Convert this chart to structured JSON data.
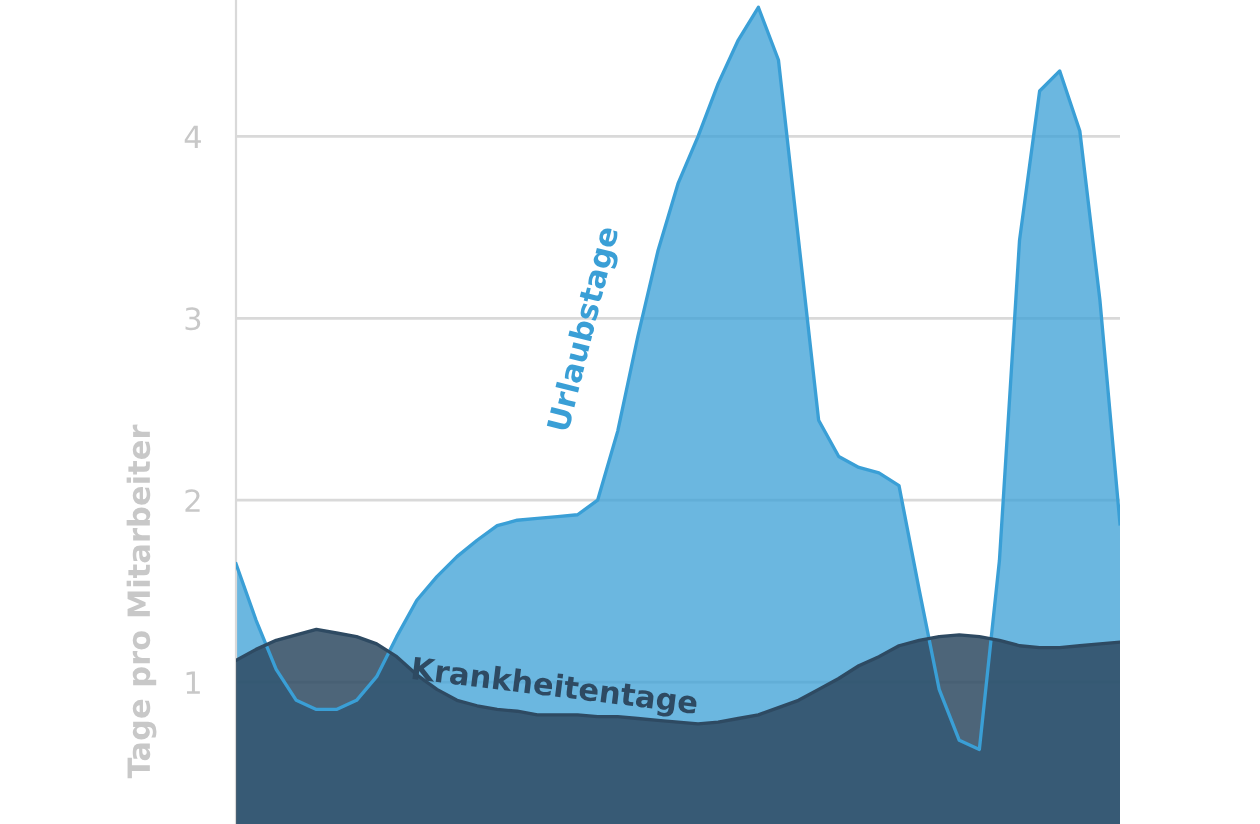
{
  "chart_data": {
    "type": "area",
    "ylabel": "Tage pro Mitarbeiter",
    "categories": [
      null,
      null,
      null,
      null,
      null,
      null,
      null,
      null,
      null,
      null,
      null,
      null,
      null,
      null,
      null,
      null,
      null,
      null,
      null,
      null,
      null,
      null,
      null,
      null,
      null,
      null,
      null,
      null,
      null,
      null,
      null,
      null,
      null,
      null,
      null,
      null,
      null,
      null,
      null,
      null,
      null,
      null,
      null,
      null,
      null
    ],
    "series": [
      {
        "name": "Urlaubstage",
        "color": "#3a9fd6",
        "values": [
          1.65,
          1.34,
          1.07,
          0.9,
          0.85,
          0.85,
          0.9,
          1.03,
          1.25,
          1.45,
          1.58,
          1.69,
          1.78,
          1.86,
          1.89,
          1.9,
          1.91,
          1.92,
          2.0,
          2.38,
          2.9,
          3.37,
          3.74,
          4.0,
          4.29,
          4.53,
          4.71,
          4.42,
          3.43,
          2.44,
          2.24,
          2.18,
          2.15,
          2.08,
          1.51,
          0.96,
          0.68,
          0.63,
          1.67,
          3.43,
          4.25,
          4.36,
          4.03,
          3.1,
          1.87
        ]
      },
      {
        "name": "Krankheitentage",
        "color": "#2e4a62",
        "values": [
          1.12,
          1.18,
          1.23,
          1.26,
          1.29,
          1.27,
          1.25,
          1.21,
          1.14,
          1.04,
          0.96,
          0.9,
          0.87,
          0.85,
          0.84,
          0.82,
          0.82,
          0.82,
          0.81,
          0.81,
          0.8,
          0.79,
          0.78,
          0.77,
          0.78,
          0.8,
          0.82,
          0.86,
          0.9,
          0.96,
          1.02,
          1.09,
          1.14,
          1.2,
          1.23,
          1.25,
          1.26,
          1.25,
          1.23,
          1.2,
          1.19,
          1.19,
          1.2,
          1.21,
          1.22
        ]
      }
    ],
    "ylim": [
      0.22,
      4.75
    ],
    "yticks": [
      1,
      2,
      3,
      4
    ],
    "grid": "y",
    "tick_labels": "y",
    "legend": false
  }
}
